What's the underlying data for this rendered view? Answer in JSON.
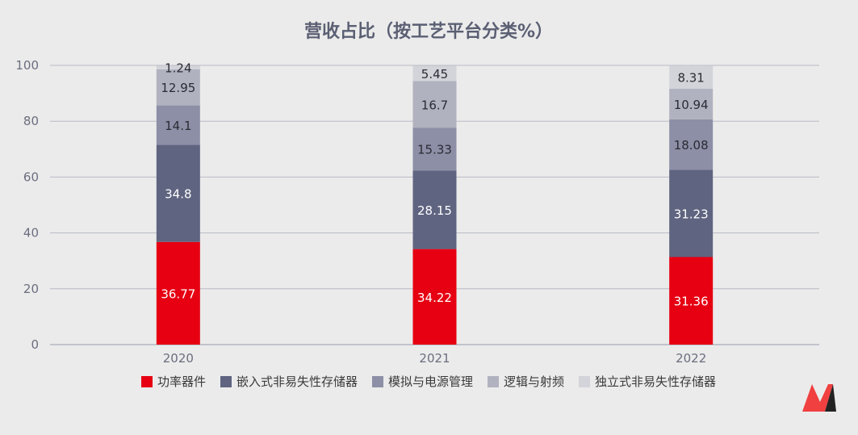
{
  "chart_data": {
    "type": "bar",
    "stacked": true,
    "title": "营收占比（按工艺平台分类%）",
    "xlabel": "",
    "ylabel": "",
    "categories": [
      "2020",
      "2021",
      "2022"
    ],
    "ylim": [
      0,
      100
    ],
    "yticks": [
      0,
      20,
      40,
      60,
      80,
      100
    ],
    "grid": true,
    "legend_position": "bottom",
    "series": [
      {
        "name": "功率器件",
        "color": "#e60012",
        "label_color": "#ffffff",
        "values": [
          36.77,
          34.22,
          31.36
        ]
      },
      {
        "name": "嵌入式非易失性存储器",
        "color": "#5f6480",
        "label_color": "#ffffff",
        "values": [
          34.8,
          28.15,
          31.23
        ]
      },
      {
        "name": "模拟与电源管理",
        "color": "#8c8fa6",
        "label_color": "#2b2b35",
        "values": [
          14.1,
          15.33,
          18.08
        ]
      },
      {
        "name": "逻辑与射频",
        "color": "#b0b2bf",
        "label_color": "#2b2b35",
        "values": [
          12.95,
          16.7,
          10.94
        ]
      },
      {
        "name": "独立式非易失性存储器",
        "color": "#d3d4da",
        "label_color": "#2b2b35",
        "values": [
          1.24,
          5.45,
          8.31
        ]
      }
    ]
  },
  "logo": {
    "name": "m-logo-icon",
    "colors": [
      "#f04040",
      "#222222"
    ]
  }
}
